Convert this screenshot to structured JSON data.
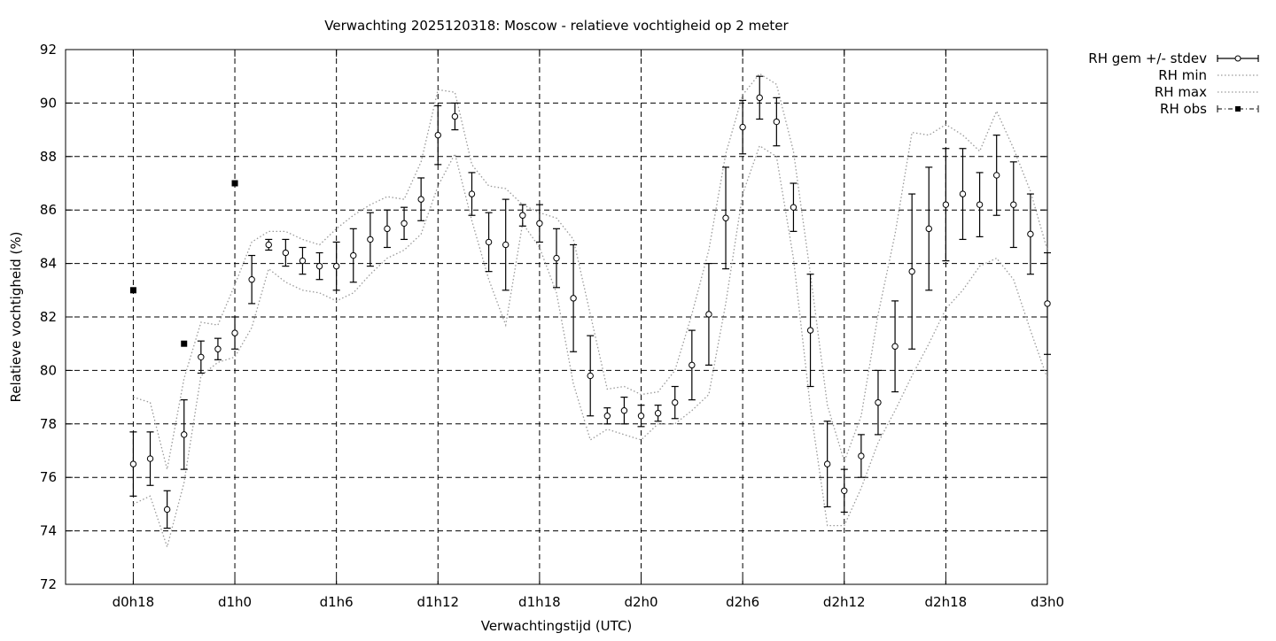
{
  "chart_data": {
    "type": "line",
    "title": "Verwachting 2025120318: Moscow - relatieve vochtigheid op 2 meter",
    "xlabel": "Verwachtingstijd (UTC)",
    "ylabel": "Relatieve vochtigheid (%)",
    "x_unit": "hours since d0h18",
    "xlim": [
      -4,
      54
    ],
    "ylim": [
      72,
      92
    ],
    "y_ticks": [
      72,
      74,
      76,
      78,
      80,
      82,
      84,
      86,
      88,
      90,
      92
    ],
    "x_ticks": [
      {
        "x": 0,
        "label": "d0h18"
      },
      {
        "x": 6,
        "label": "d1h0"
      },
      {
        "x": 12,
        "label": "d1h6"
      },
      {
        "x": 18,
        "label": "d1h12"
      },
      {
        "x": 24,
        "label": "d1h18"
      },
      {
        "x": 30,
        "label": "d2h0"
      },
      {
        "x": 36,
        "label": "d2h6"
      },
      {
        "x": 42,
        "label": "d2h12"
      },
      {
        "x": 48,
        "label": "d2h18"
      },
      {
        "x": 54,
        "label": "d3h0"
      }
    ],
    "grid": true,
    "legend_position": "outside-top-right",
    "series": [
      {
        "name": "RH gem +/- stdev",
        "style": "errorbar",
        "x": [
          0,
          1,
          2,
          3,
          4,
          5,
          6,
          7,
          8,
          9,
          10,
          11,
          12,
          13,
          14,
          15,
          16,
          17,
          18,
          19,
          20,
          21,
          22,
          23,
          24,
          25,
          26,
          27,
          28,
          29,
          30,
          31,
          32,
          33,
          34,
          35,
          36,
          37,
          38,
          39,
          40,
          41,
          42,
          43,
          44,
          45,
          46,
          47,
          48,
          49,
          50,
          51,
          52,
          53,
          54
        ],
        "mean": [
          76.5,
          76.7,
          74.8,
          77.6,
          80.5,
          80.8,
          81.4,
          83.4,
          84.7,
          84.4,
          84.1,
          83.9,
          83.9,
          84.3,
          84.9,
          85.3,
          85.5,
          86.4,
          88.8,
          89.5,
          86.6,
          84.8,
          84.7,
          85.8,
          85.5,
          84.2,
          82.7,
          79.8,
          78.3,
          78.5,
          78.3,
          78.4,
          78.8,
          80.2,
          82.1,
          85.7,
          89.1,
          90.2,
          89.3,
          86.1,
          81.5,
          76.5,
          75.5,
          76.8,
          78.8,
          80.9,
          83.7,
          85.3,
          86.2,
          86.6,
          86.2,
          87.3,
          86.2,
          85.1,
          82.5
        ],
        "low": [
          75.3,
          75.7,
          74.1,
          76.3,
          79.9,
          80.4,
          80.8,
          82.5,
          84.5,
          83.9,
          83.6,
          83.4,
          83.0,
          83.3,
          83.9,
          84.6,
          84.9,
          85.6,
          87.7,
          89.0,
          85.8,
          83.7,
          83.0,
          85.4,
          84.8,
          83.1,
          80.7,
          78.3,
          78.0,
          78.0,
          77.9,
          78.1,
          78.2,
          78.9,
          80.2,
          83.8,
          88.1,
          89.4,
          88.4,
          85.2,
          79.4,
          74.9,
          74.7,
          76.0,
          77.6,
          79.2,
          80.8,
          83.0,
          84.1,
          84.9,
          85.0,
          85.8,
          84.6,
          83.6,
          80.6
        ],
        "high": [
          77.7,
          77.7,
          75.5,
          78.9,
          81.1,
          81.2,
          82.0,
          84.3,
          84.9,
          84.9,
          84.6,
          84.4,
          84.8,
          85.3,
          85.9,
          86.0,
          86.1,
          87.2,
          89.9,
          90.0,
          87.4,
          85.9,
          86.4,
          86.2,
          86.2,
          85.3,
          84.7,
          81.3,
          78.6,
          79.0,
          78.7,
          78.7,
          79.4,
          81.5,
          84.0,
          87.6,
          90.1,
          91.0,
          90.2,
          87.0,
          83.6,
          78.1,
          76.3,
          77.6,
          80.0,
          82.6,
          86.6,
          87.6,
          88.3,
          88.3,
          87.4,
          88.8,
          87.8,
          86.6,
          84.4
        ]
      },
      {
        "name": "RH min",
        "style": "dotted",
        "x": [
          0,
          1,
          2,
          3,
          4,
          5,
          6,
          7,
          8,
          9,
          10,
          11,
          12,
          13,
          14,
          15,
          16,
          17,
          18,
          19,
          20,
          21,
          22,
          23,
          24,
          25,
          26,
          27,
          28,
          29,
          30,
          31,
          32,
          33,
          34,
          35,
          36,
          37,
          38,
          39,
          40,
          41,
          42,
          43,
          44,
          45,
          46,
          47,
          48,
          49,
          50,
          51,
          52,
          53,
          54
        ],
        "values": [
          75.0,
          75.3,
          73.4,
          75.8,
          79.8,
          80.3,
          80.5,
          81.6,
          83.8,
          83.3,
          83.0,
          82.9,
          82.6,
          82.9,
          83.6,
          84.2,
          84.5,
          85.1,
          86.9,
          88.1,
          85.6,
          83.4,
          81.7,
          85.5,
          84.6,
          82.9,
          79.5,
          77.4,
          77.8,
          77.6,
          77.4,
          78.0,
          78.0,
          78.5,
          79.1,
          82.5,
          86.6,
          88.4,
          88.0,
          84.2,
          78.6,
          74.2,
          74.2,
          75.6,
          77.3,
          78.5,
          79.8,
          81.0,
          82.3,
          83.0,
          83.9,
          84.2,
          83.4,
          81.5,
          79.7
        ]
      },
      {
        "name": "RH max",
        "style": "dotted",
        "x": [
          0,
          1,
          2,
          3,
          4,
          5,
          6,
          7,
          8,
          9,
          10,
          11,
          12,
          13,
          14,
          15,
          16,
          17,
          18,
          19,
          20,
          21,
          22,
          23,
          24,
          25,
          26,
          27,
          28,
          29,
          30,
          31,
          32,
          33,
          34,
          35,
          36,
          37,
          38,
          39,
          40,
          41,
          42,
          43,
          44,
          45,
          46,
          47,
          48,
          49,
          50,
          51,
          52,
          53,
          54
        ],
        "values": [
          79.0,
          78.8,
          76.3,
          79.7,
          81.8,
          81.7,
          83.2,
          84.8,
          85.2,
          85.2,
          84.9,
          84.7,
          85.3,
          85.8,
          86.2,
          86.5,
          86.4,
          87.8,
          90.5,
          90.4,
          87.7,
          86.9,
          86.8,
          86.2,
          85.9,
          85.7,
          84.9,
          82.1,
          79.3,
          79.4,
          79.1,
          79.2,
          80.0,
          82.1,
          84.5,
          88.1,
          90.3,
          91.1,
          90.7,
          88.2,
          83.6,
          78.7,
          76.6,
          78.3,
          82.1,
          85.1,
          88.9,
          88.8,
          89.2,
          88.8,
          88.2,
          89.7,
          88.3,
          86.7,
          84.5
        ]
      },
      {
        "name": "RH obs",
        "style": "points",
        "x": [
          0,
          3,
          6
        ],
        "values": [
          83,
          81,
          87
        ]
      }
    ]
  }
}
